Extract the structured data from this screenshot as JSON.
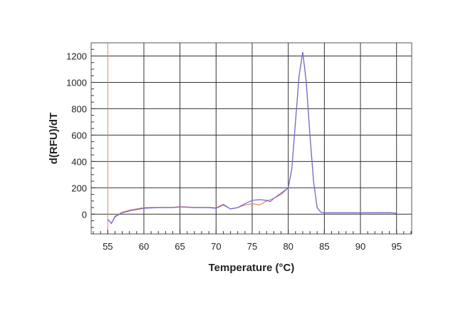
{
  "chart_data": {
    "type": "line",
    "title": "",
    "xlabel": "Temperature (°C)",
    "ylabel": "d(RFU)/dT",
    "xlim": [
      52.7,
      97.1
    ],
    "ylim": [
      -150,
      1300
    ],
    "xticks": [
      55,
      60,
      65,
      70,
      75,
      80,
      85,
      90,
      95
    ],
    "yticks": [
      0,
      200,
      400,
      600,
      800,
      1000,
      1200
    ],
    "grid": true,
    "threshold_line": {
      "x": 55,
      "color": "#e8806a"
    },
    "series": [
      {
        "color": "#e8805a",
        "x": [
          55,
          55.5,
          56,
          57,
          58,
          59,
          60,
          62,
          64,
          65,
          67,
          69,
          70,
          71,
          72,
          73,
          74,
          75,
          76,
          77,
          78,
          79,
          80,
          80.5,
          81,
          81.5,
          82,
          82.5,
          83,
          83.5,
          84,
          84.5,
          85,
          90,
          94,
          95
        ],
        "y": [
          -40,
          -70,
          -15,
          15,
          30,
          40,
          50,
          52,
          52,
          58,
          52,
          52,
          48,
          75,
          40,
          50,
          70,
          80,
          70,
          100,
          120,
          150,
          200,
          350,
          700,
          1050,
          1230,
          1000,
          600,
          250,
          50,
          15,
          10,
          10,
          12,
          8
        ]
      },
      {
        "color": "#6a6ad0",
        "x": [
          55,
          55.5,
          56,
          57,
          58,
          59,
          60,
          62,
          64,
          65,
          67,
          69,
          70,
          71,
          72,
          73,
          74,
          75,
          76,
          77,
          77.5,
          78,
          79,
          80,
          80.5,
          81,
          81.5,
          82,
          82.5,
          83,
          83.5,
          84,
          84.5,
          85,
          90,
          94,
          95
        ],
        "y": [
          -40,
          -70,
          -20,
          10,
          25,
          35,
          45,
          50,
          50,
          55,
          50,
          50,
          45,
          70,
          40,
          50,
          80,
          105,
          110,
          105,
          95,
          120,
          160,
          200,
          350,
          700,
          1050,
          1230,
          1000,
          600,
          250,
          50,
          15,
          10,
          10,
          12,
          8
        ]
      }
    ]
  }
}
